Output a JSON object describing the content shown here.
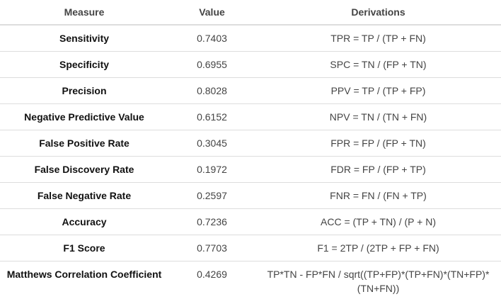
{
  "table": {
    "headers": [
      "Measure",
      "Value",
      "Derivations"
    ],
    "rows": [
      {
        "measure": "Sensitivity",
        "value": "0.7403",
        "derivation": "TPR = TP / (TP + FN)"
      },
      {
        "measure": "Specificity",
        "value": "0.6955",
        "derivation": "SPC = TN / (FP + TN)"
      },
      {
        "measure": "Precision",
        "value": "0.8028",
        "derivation": "PPV = TP / (TP + FP)"
      },
      {
        "measure": "Negative Predictive Value",
        "value": "0.6152",
        "derivation": "NPV = TN / (TN + FN)"
      },
      {
        "measure": "False Positive Rate",
        "value": "0.3045",
        "derivation": "FPR = FP / (FP + TN)"
      },
      {
        "measure": "False Discovery Rate",
        "value": "0.1972",
        "derivation": "FDR = FP / (FP + TP)"
      },
      {
        "measure": "False Negative Rate",
        "value": "0.2597",
        "derivation": "FNR = FN / (FN + TP)"
      },
      {
        "measure": "Accuracy",
        "value": "0.7236",
        "derivation": "ACC = (TP + TN) / (P + N)"
      },
      {
        "measure": "F1 Score",
        "value": "0.7703",
        "derivation": "F1 = 2TP / (2TP + FP + FN)"
      },
      {
        "measure": "Matthews Correlation Coefficient",
        "value": "0.4269",
        "derivation": "TP*TN - FP*FN / sqrt((TP+FP)*(TP+FN)*(TN+FP)*(TN+FN))"
      }
    ]
  }
}
